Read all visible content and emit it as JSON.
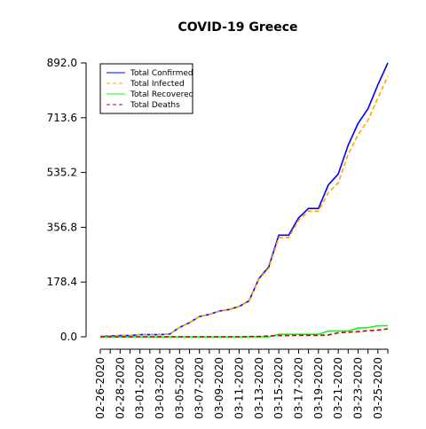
{
  "chart_data": {
    "type": "line",
    "title": "COVID-19 Greece",
    "xlabel": "",
    "ylabel": "",
    "grid": false,
    "legend_position": "top-left",
    "ylim": [
      0,
      892.0
    ],
    "y_ticks": [
      "0.0",
      "178.4",
      "356.8",
      "535.2",
      "713.6",
      "892.0"
    ],
    "x_tick_labels": [
      "02-26-2020",
      "02-28-2020",
      "03-01-2020",
      "03-03-2020",
      "03-05-2020",
      "03-07-2020",
      "03-09-2020",
      "03-11-2020",
      "03-13-2020",
      "03-15-2020",
      "03-17-2020",
      "03-19-2020",
      "03-21-2020",
      "03-23-2020",
      "03-25-2020"
    ],
    "x": [
      "02-26-2020",
      "02-27-2020",
      "02-28-2020",
      "02-29-2020",
      "03-01-2020",
      "03-02-2020",
      "03-03-2020",
      "03-04-2020",
      "03-05-2020",
      "03-06-2020",
      "03-07-2020",
      "03-08-2020",
      "03-09-2020",
      "03-10-2020",
      "03-11-2020",
      "03-12-2020",
      "03-13-2020",
      "03-14-2020",
      "03-15-2020",
      "03-16-2020",
      "03-17-2020",
      "03-18-2020",
      "03-19-2020",
      "03-20-2020",
      "03-21-2020",
      "03-22-2020",
      "03-23-2020",
      "03-24-2020",
      "03-25-2020",
      "03-26-2020"
    ],
    "series": [
      {
        "name": "Total Confirmed",
        "color": "#0000ff",
        "dash": "solid",
        "values": [
          1,
          3,
          4,
          4,
          7,
          7,
          7,
          9,
          31,
          46,
          66,
          73,
          84,
          89,
          99,
          117,
          190,
          228,
          331,
          331,
          387,
          418,
          418,
          495,
          530,
          624,
          695,
          743,
          821,
          892
        ]
      },
      {
        "name": "Total Infected",
        "color": "#ffa500",
        "dash": "dashed",
        "values": [
          1,
          3,
          4,
          4,
          7,
          7,
          7,
          9,
          31,
          46,
          66,
          73,
          84,
          89,
          99,
          116,
          188,
          224,
          323,
          323,
          379,
          409,
          409,
          470,
          501,
          595,
          658,
          706,
          777,
          849
        ]
      },
      {
        "name": "Total Recovered",
        "color": "#00ff00",
        "dash": "solid",
        "values": [
          0,
          0,
          0,
          0,
          0,
          0,
          0,
          0,
          0,
          0,
          0,
          0,
          0,
          0,
          0,
          0,
          0,
          0,
          8,
          8,
          8,
          8,
          8,
          19,
          19,
          19,
          29,
          30,
          36,
          36
        ]
      },
      {
        "name": "Total Deaths",
        "color": "#cc0000",
        "dash": "dashed",
        "values": [
          0,
          0,
          0,
          0,
          0,
          0,
          0,
          0,
          0,
          0,
          0,
          0,
          0,
          0,
          0,
          1,
          1,
          3,
          4,
          4,
          5,
          5,
          5,
          6,
          13,
          15,
          17,
          20,
          22,
          26
        ]
      }
    ]
  }
}
